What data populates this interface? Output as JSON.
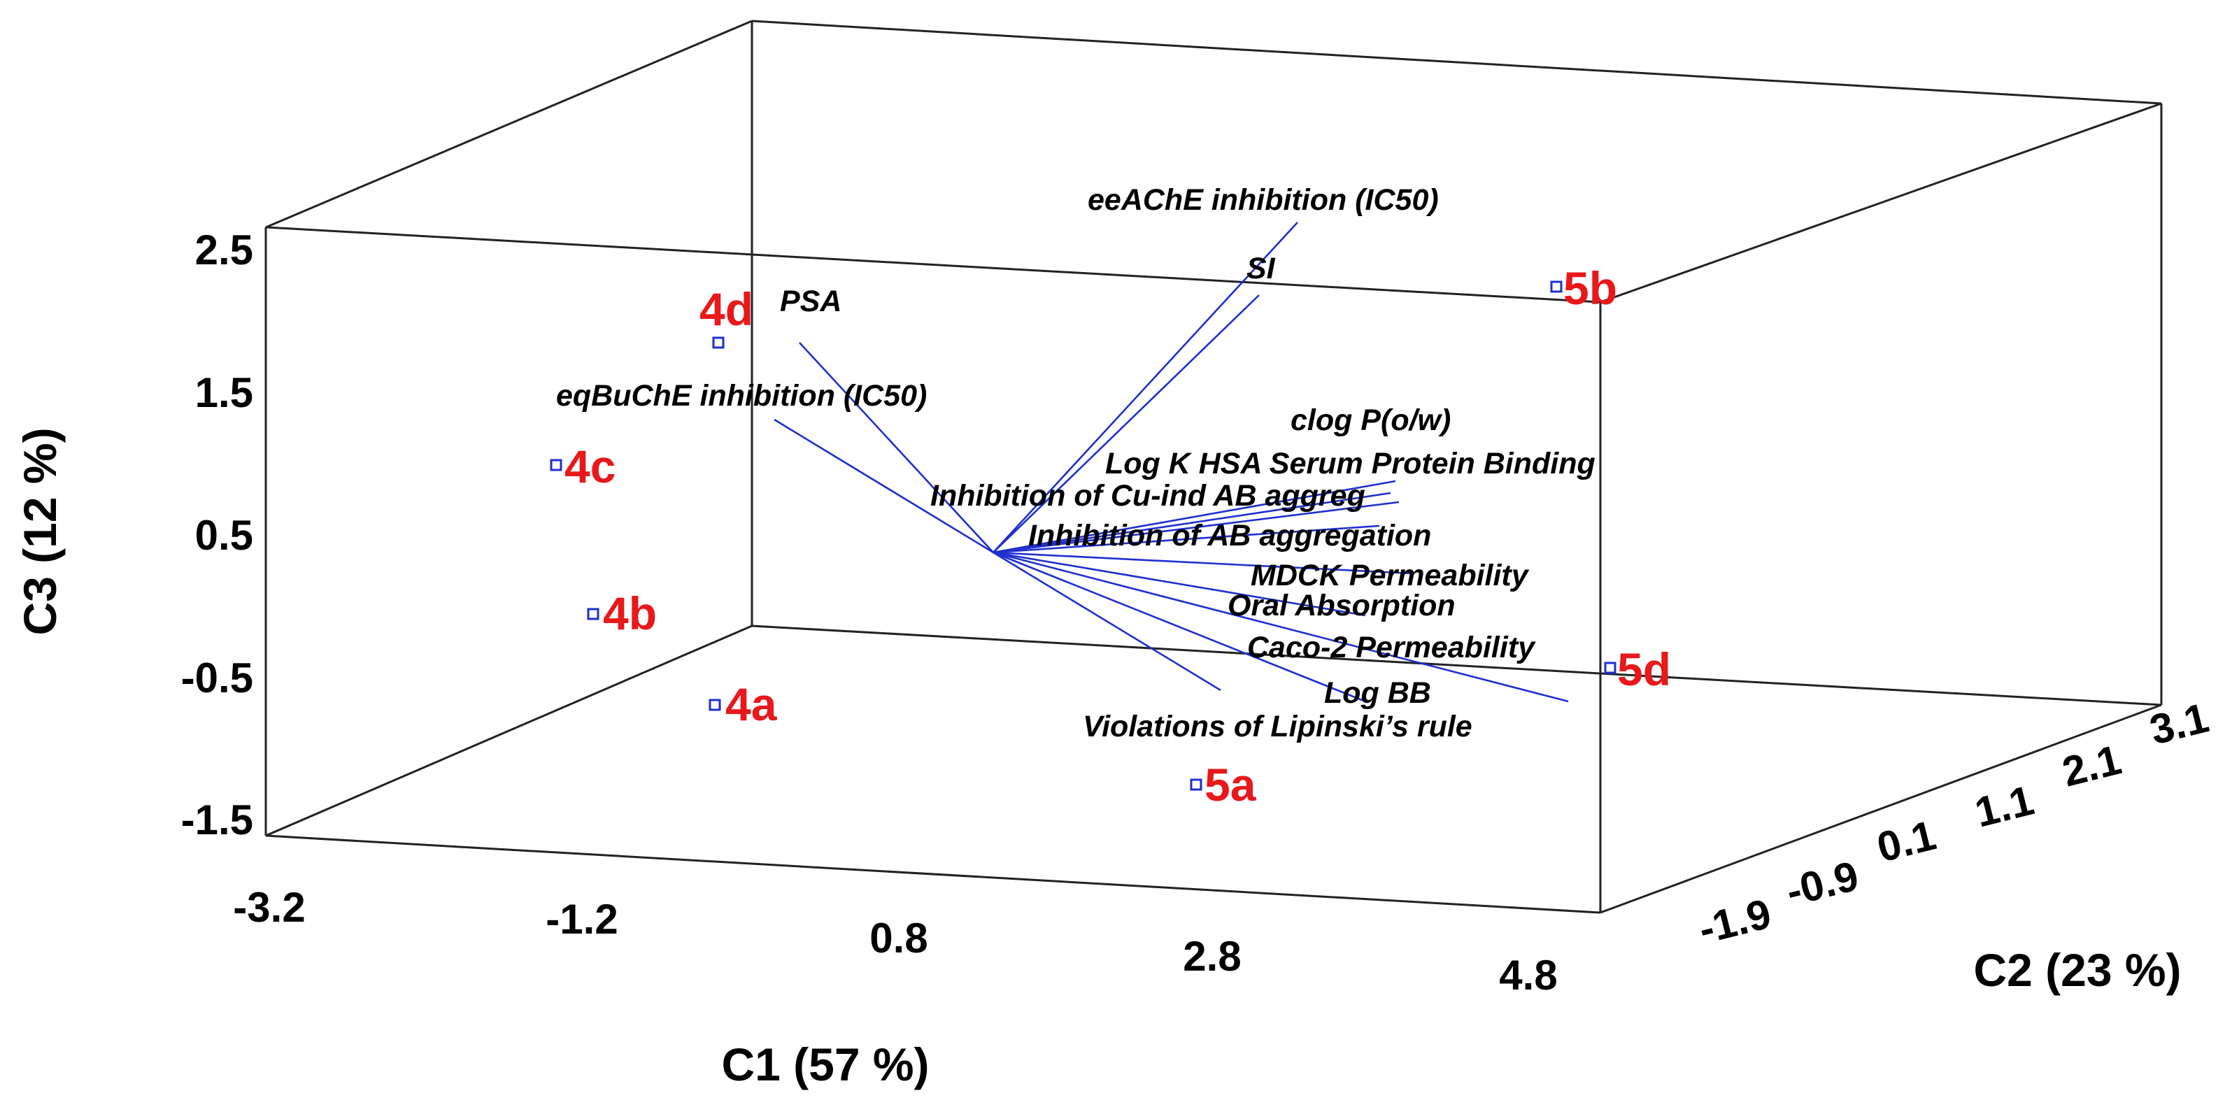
{
  "chart_data": {
    "type": "scatter",
    "title": "",
    "xlabel": "C1 (57 %)",
    "ylabel": "C2 (23 %)",
    "zlabel": "C3 (12 %)",
    "x_ticks": [
      "-3.2",
      "-1.2",
      "0.8",
      "2.8",
      "4.8"
    ],
    "y_ticks": [
      "-1.9",
      "-0.9",
      "0.1",
      "1.1",
      "2.1",
      "3.1"
    ],
    "z_ticks": [
      "-1.5",
      "-0.5",
      "0.5",
      "1.5",
      "2.5"
    ],
    "xlim": [
      -3.2,
      4.8
    ],
    "ylim": [
      -1.9,
      3.1
    ],
    "zlim": [
      -1.5,
      2.5
    ],
    "grid": false,
    "colors": {
      "axes": "#222222",
      "vectors": "#1f2fd0",
      "points": "#1f2fd0",
      "point_labels": "#e8181b"
    },
    "points": [
      {
        "label": "4a"
      },
      {
        "label": "4b"
      },
      {
        "label": "4c"
      },
      {
        "label": "4d"
      },
      {
        "label": "5a"
      },
      {
        "label": "5b"
      },
      {
        "label": "5d"
      }
    ],
    "loadings": [
      {
        "label": "eeAChE inhibition (IC50)"
      },
      {
        "label": "SI"
      },
      {
        "label": "PSA"
      },
      {
        "label": "eqBuChE inhibition (IC50)"
      },
      {
        "label": "clog P(o/w)"
      },
      {
        "label": "Log K HSA Serum Protein Binding"
      },
      {
        "label": "Inhibition of Cu-ind AB aggreg"
      },
      {
        "label": "Inhibition of AB aggregation"
      },
      {
        "label": "MDCK Permeability"
      },
      {
        "label": "Oral Absorption"
      },
      {
        "label": "Caco-2 Permeability"
      },
      {
        "label": "Log BB"
      },
      {
        "label": "Violations of Lipinski’s rule"
      }
    ]
  }
}
